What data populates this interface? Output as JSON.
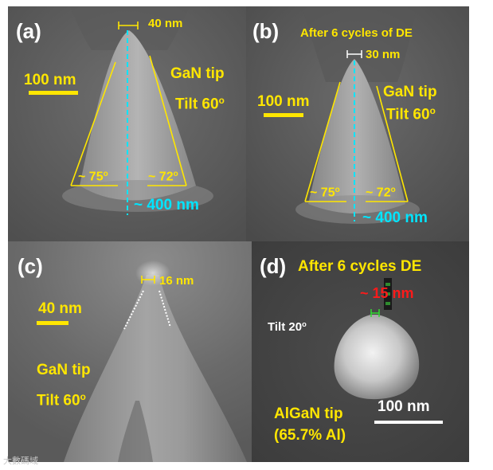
{
  "panels": {
    "a": {
      "label": "(a)",
      "tip_width": "40 nm",
      "scale_bar": "100 nm",
      "material": "GaN tip",
      "tilt": "Tilt 60",
      "tilt_sup": "o",
      "angle_left": "~ 75",
      "angle_left_sup": "o",
      "angle_right": "~ 72",
      "angle_right_sup": "o",
      "height": "~ 400 nm"
    },
    "b": {
      "label": "(b)",
      "title": "After 6 cycles of DE",
      "tip_width": "30 nm",
      "scale_bar": "100 nm",
      "material": "GaN tip",
      "tilt": "Tilt 60",
      "tilt_sup": "o",
      "angle_left": "~ 75",
      "angle_left_sup": "o",
      "angle_right": "~ 72",
      "angle_right_sup": "o",
      "height": "~ 400 nm"
    },
    "c": {
      "label": "(c)",
      "tip_width": "16 nm",
      "scale_bar": "40 nm",
      "material": "GaN tip",
      "tilt": "Tilt 60",
      "tilt_sup": "o"
    },
    "d": {
      "label": "(d)",
      "title": "After 6 cycles DE",
      "tip_width": "~ 15 nm",
      "tilt": "Tilt 20",
      "tilt_sup": "o",
      "scale_bar": "100 nm",
      "material": "AlGaN tip",
      "composition": "(65.7% Al)"
    }
  },
  "watermark": "大數碼域",
  "colors": {
    "annotation_yellow": "#ffe600",
    "axis_cyan": "#00e5ff",
    "highlight_red": "#ff1a1a",
    "marker_green": "#33dd33"
  }
}
